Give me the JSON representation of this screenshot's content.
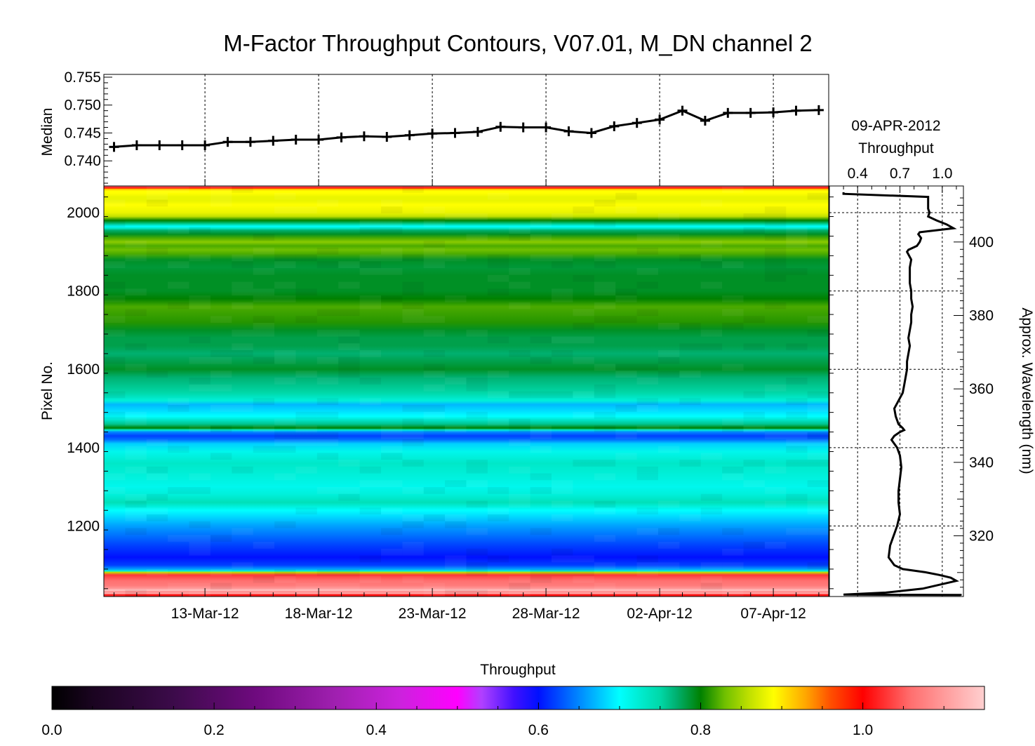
{
  "title": "M-Factor Throughput Contours, V07.01, M_DN channel 2",
  "chart_data": [
    {
      "id": "median-line",
      "type": "line",
      "ylabel": "Median",
      "ylim": [
        0.7355,
        0.7555
      ],
      "yticks": [
        0.74,
        0.745,
        0.75,
        0.755
      ],
      "ytick_labels": [
        "0.740",
        "0.745",
        "0.750",
        "0.755"
      ],
      "x_start": "2012-03-09",
      "x_end": "2012-04-10",
      "xticks": [
        "2012-03-13",
        "2012-03-18",
        "2012-03-23",
        "2012-03-28",
        "2012-04-02",
        "2012-04-07"
      ],
      "grid": true,
      "series": [
        {
          "x": [
            "2012-03-09",
            "2012-03-10",
            "2012-03-11",
            "2012-03-12",
            "2012-03-13",
            "2012-03-14",
            "2012-03-15",
            "2012-03-16",
            "2012-03-17",
            "2012-03-18",
            "2012-03-19",
            "2012-03-20",
            "2012-03-21",
            "2012-03-22",
            "2012-03-23",
            "2012-03-24",
            "2012-03-25",
            "2012-03-26",
            "2012-03-27",
            "2012-03-28",
            "2012-03-29",
            "2012-03-30",
            "2012-03-31",
            "2012-04-01",
            "2012-04-02",
            "2012-04-03",
            "2012-04-04",
            "2012-04-05",
            "2012-04-06",
            "2012-04-07",
            "2012-04-08",
            "2012-04-09"
          ],
          "y": [
            0.7425,
            0.7428,
            0.7428,
            0.7428,
            0.7428,
            0.7434,
            0.7434,
            0.7436,
            0.7438,
            0.7438,
            0.7442,
            0.7444,
            0.7443,
            0.7446,
            0.7449,
            0.745,
            0.7452,
            0.7461,
            0.746,
            0.746,
            0.7453,
            0.745,
            0.7462,
            0.7468,
            0.7474,
            0.749,
            0.7472,
            0.7486,
            0.7486,
            0.7487,
            0.749,
            0.7491
          ]
        }
      ]
    },
    {
      "id": "throughput-heatmap",
      "type": "heatmap",
      "xticks": [
        "2012-03-13",
        "2012-03-18",
        "2012-03-23",
        "2012-03-28",
        "2012-04-02",
        "2012-04-07"
      ],
      "xtick_labels": [
        "13-Mar-12",
        "18-Mar-12",
        "23-Mar-12",
        "28-Mar-12",
        "02-Apr-12",
        "07-Apr-12"
      ],
      "ylabel": "Pixel No.",
      "ylim": [
        1020,
        2068
      ],
      "yticks": [
        1200,
        1400,
        1600,
        1800,
        2000
      ],
      "ytick_labels": [
        "1200",
        "1400",
        "1600",
        "1800",
        "2000"
      ],
      "row_profile": {
        "pixel": [
          1020,
          1024,
          1028,
          1032,
          1036,
          1040,
          1048,
          1060,
          1075,
          1082,
          1085,
          1090,
          1100,
          1120,
          1150,
          1175,
          1200,
          1220,
          1240,
          1260,
          1280,
          1300,
          1330,
          1360,
          1390,
          1410,
          1420,
          1430,
          1440,
          1445,
          1450,
          1460,
          1480,
          1500,
          1510,
          1520,
          1540,
          1560,
          1580,
          1600,
          1620,
          1640,
          1660,
          1680,
          1700,
          1720,
          1740,
          1760,
          1780,
          1800,
          1820,
          1840,
          1860,
          1880,
          1895,
          1905,
          1915,
          1925,
          1935,
          1945,
          1955,
          1960,
          1965,
          1970,
          1980,
          1990,
          2000,
          2010,
          2020,
          2030,
          2040,
          2050,
          2055,
          2060,
          2063,
          2066,
          2068
        ],
        "throughput": [
          1.03,
          1.0,
          1.12,
          1.08,
          1.14,
          1.1,
          1.07,
          1.06,
          1.03,
          0.86,
          0.72,
          0.66,
          0.62,
          0.6,
          0.62,
          0.64,
          0.66,
          0.68,
          0.7,
          0.74,
          0.72,
          0.71,
          0.72,
          0.73,
          0.71,
          0.68,
          0.64,
          0.62,
          0.65,
          0.72,
          0.8,
          0.76,
          0.7,
          0.68,
          0.67,
          0.72,
          0.75,
          0.76,
          0.77,
          0.79,
          0.78,
          0.77,
          0.78,
          0.78,
          0.79,
          0.81,
          0.815,
          0.82,
          0.8,
          0.79,
          0.79,
          0.79,
          0.785,
          0.79,
          0.82,
          0.83,
          0.82,
          0.84,
          0.82,
          0.79,
          0.77,
          0.73,
          0.7,
          0.75,
          0.8,
          0.86,
          0.88,
          0.885,
          0.89,
          0.88,
          0.88,
          0.89,
          0.89,
          0.92,
          1.0,
          1.05,
          1.05
        ]
      }
    },
    {
      "id": "profile-09apr",
      "type": "line",
      "title_line1": "09-APR-2012",
      "title_line2": "Throughput",
      "xlim": [
        0.2,
        1.15
      ],
      "xticks": [
        0.4,
        0.7,
        1.0
      ],
      "xtick_labels": [
        "0.4",
        "0.7",
        "1.0"
      ],
      "ylabel": "Approx. Wavelength (nm)",
      "wavelength_ticks": [
        320,
        340,
        360,
        380,
        400
      ],
      "wavelength_tick_labels": [
        "320",
        "340",
        "360",
        "380",
        "400"
      ],
      "grid": true,
      "series": [
        {
          "pixel": [
            1022,
            1024,
            1025,
            1030,
            1040,
            1060,
            1068,
            1075,
            1082,
            1090,
            1100,
            1120,
            1150,
            1180,
            1200,
            1230,
            1260,
            1290,
            1320,
            1350,
            1380,
            1400,
            1420,
            1430,
            1440,
            1445,
            1450,
            1460,
            1480,
            1500,
            1520,
            1540,
            1560,
            1580,
            1600,
            1620,
            1640,
            1660,
            1680,
            1700,
            1720,
            1740,
            1760,
            1780,
            1800,
            1820,
            1840,
            1860,
            1880,
            1900,
            1905,
            1915,
            1925,
            1935,
            1945,
            1950,
            1960,
            1970,
            1980,
            1990,
            2000,
            2010,
            2020,
            2030,
            2040,
            2048,
            2052
          ],
          "throughput": [
            1.13,
            1.13,
            0.3,
            0.6,
            0.86,
            1.1,
            1.06,
            0.98,
            0.88,
            0.72,
            0.66,
            0.62,
            0.63,
            0.66,
            0.68,
            0.7,
            0.69,
            0.69,
            0.7,
            0.71,
            0.7,
            0.68,
            0.64,
            0.66,
            0.7,
            0.73,
            0.72,
            0.69,
            0.67,
            0.66,
            0.69,
            0.72,
            0.73,
            0.74,
            0.75,
            0.75,
            0.76,
            0.77,
            0.76,
            0.77,
            0.78,
            0.78,
            0.79,
            0.78,
            0.78,
            0.77,
            0.77,
            0.77,
            0.78,
            0.75,
            0.76,
            0.82,
            0.84,
            0.85,
            0.83,
            0.84,
            1.08,
            1.03,
            0.96,
            0.9,
            0.91,
            0.9,
            0.9,
            0.9,
            0.9,
            0.3,
            0.3
          ]
        }
      ]
    },
    {
      "id": "colorbar",
      "type": "colorbar",
      "title": "Throughput",
      "range": [
        0.0,
        1.15
      ],
      "ticks": [
        0.0,
        0.2,
        0.4,
        0.6,
        0.8,
        1.0
      ],
      "tick_labels": [
        "0.0",
        "0.2",
        "0.4",
        "0.6",
        "0.8",
        "1.0"
      ]
    }
  ],
  "colormap": [
    [
      0.0,
      "#000000"
    ],
    [
      0.05,
      "#1a0420"
    ],
    [
      0.15,
      "#3c0b4a"
    ],
    [
      0.25,
      "#6e0a7e"
    ],
    [
      0.35,
      "#a020b0"
    ],
    [
      0.43,
      "#cc22dd"
    ],
    [
      0.5,
      "#ff00ff"
    ],
    [
      0.53,
      "#b040ff"
    ],
    [
      0.57,
      "#4010ff"
    ],
    [
      0.6,
      "#0010ff"
    ],
    [
      0.64,
      "#0070ff"
    ],
    [
      0.67,
      "#00b8ff"
    ],
    [
      0.7,
      "#00ffff"
    ],
    [
      0.73,
      "#00e8c8"
    ],
    [
      0.75,
      "#00d8a8"
    ],
    [
      0.77,
      "#00b070"
    ],
    [
      0.8,
      "#008000"
    ],
    [
      0.83,
      "#70c000"
    ],
    [
      0.86,
      "#c0e000"
    ],
    [
      0.89,
      "#ffff00"
    ],
    [
      0.93,
      "#ffa500"
    ],
    [
      0.96,
      "#ff5000"
    ],
    [
      1.0,
      "#ff0000"
    ],
    [
      1.06,
      "#ff7070"
    ],
    [
      1.15,
      "#ffd0d0"
    ]
  ]
}
